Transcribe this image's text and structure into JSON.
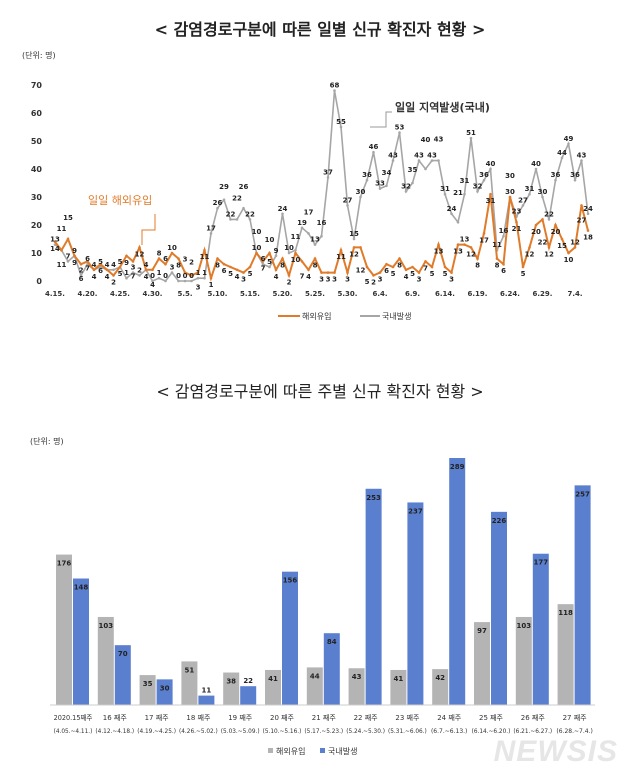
{
  "chart_data": [
    {
      "type": "line",
      "title": "< 감염경로구분에 따른 일별  신규 확진자 현황 >",
      "unit_label": "(단위: 명)",
      "ylim": [
        0,
        70
      ],
      "yticks": [
        0,
        10,
        20,
        30,
        40,
        50,
        60,
        70
      ],
      "xtick_labels": [
        "4.15.",
        "4.20.",
        "4.25.",
        "4.30.",
        "5.5.",
        "5.10.",
        "5.15.",
        "5.20.",
        "5.25.",
        "5.30.",
        "6.4.",
        "6.9.",
        "6.14.",
        "6.19.",
        "6.24.",
        "6.29.",
        "7.4."
      ],
      "grid": false,
      "legend": "bottom",
      "annotations": [
        "일일 해외유입",
        "일일 지역발생(국내)"
      ],
      "series": [
        {
          "name": "해외유입",
          "color": "#e07b2a",
          "values": [
            14,
            11,
            15,
            9,
            6,
            7,
            4,
            6,
            4,
            2,
            5,
            9,
            7,
            12,
            4,
            4,
            8,
            6,
            10,
            8,
            3,
            2,
            3,
            11,
            1,
            8,
            6,
            5,
            4,
            3,
            5,
            10,
            7,
            10,
            4,
            8,
            2,
            10,
            7,
            4,
            8,
            3,
            3,
            3,
            11,
            3,
            12,
            12,
            5,
            2,
            3,
            6,
            5,
            8,
            4,
            5,
            3,
            7,
            5,
            13,
            5,
            3,
            13,
            13,
            12,
            8,
            17,
            31,
            8,
            6,
            30,
            21,
            5,
            12,
            20,
            22,
            12,
            20,
            15,
            10,
            12,
            27,
            18
          ]
        },
        {
          "name": "국내발생",
          "color": "#a6a6a6",
          "values": [
            13,
            11,
            7,
            9,
            2,
            6,
            4,
            5,
            4,
            4,
            5,
            1,
            3,
            2,
            4,
            0,
            1,
            0,
            3,
            0,
            0,
            0,
            1,
            1,
            17,
            26,
            29,
            22,
            22,
            26,
            22,
            10,
            6,
            5,
            9,
            24,
            10,
            11,
            19,
            17,
            13,
            16,
            37,
            68,
            55,
            27,
            15,
            30,
            36,
            46,
            33,
            34,
            43,
            53,
            32,
            35,
            43,
            40,
            43,
            43,
            31,
            24,
            21,
            31,
            51,
            32,
            36,
            40,
            11,
            16,
            30,
            23,
            27,
            31,
            40,
            30,
            22,
            36,
            44,
            49,
            36,
            43,
            24
          ]
        }
      ]
    },
    {
      "type": "bar",
      "title": "< 감염경로구분에 따른 주별 신규 확진자 현황 >",
      "unit_label": "(단위: 명)",
      "legend": "bottom",
      "grid": false,
      "categories": [
        [
          "2020.15째주",
          "(4.05.~4.11.)"
        ],
        [
          "16 째주",
          "(4.12.~4.18.)"
        ],
        [
          "17 째주",
          "(4.19.~4.25.)"
        ],
        [
          "18 째주",
          "(4.26.~5.02.)"
        ],
        [
          "19 째주",
          "(5.03.~5.09.)"
        ],
        [
          "20 째주",
          "(5.10.~5.16.)"
        ],
        [
          "21 째주",
          "(5.17.~5.23.)"
        ],
        [
          "22 째주",
          "(5.24.~5.30.)"
        ],
        [
          "23 째주",
          "(5.31.~6.06.)"
        ],
        [
          "24 째주",
          "(6.7.~6.13.)"
        ],
        [
          "25 째주",
          "(6.14.~6.20.)"
        ],
        [
          "26 째주",
          "(6.21.~6.27.)"
        ],
        [
          "27 째주",
          "(6.28.~7.4.)"
        ]
      ],
      "series": [
        {
          "name": "해외유입",
          "color": "#b4b4b4",
          "values": [
            176,
            103,
            35,
            51,
            38,
            41,
            44,
            43,
            41,
            42,
            97,
            103,
            118
          ]
        },
        {
          "name": "국내발생",
          "color": "#5b7fcf",
          "values": [
            148,
            70,
            30,
            11,
            22,
            156,
            84,
            253,
            237,
            289,
            226,
            177,
            257
          ]
        }
      ]
    }
  ],
  "watermark": "NEWSIS"
}
